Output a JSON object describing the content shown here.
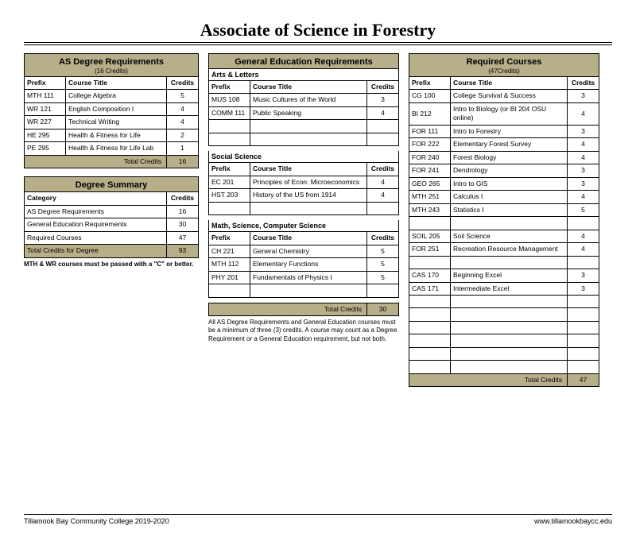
{
  "title": "Associate of Science in Forestry",
  "footer_left": "Tillamook Bay Community College 2019-2020",
  "footer_right": "www.tillamookbaycc.edu",
  "colors": {
    "accent": "#b7ae8a"
  },
  "asReq": {
    "heading": "AS Degree Requirements",
    "subheading": "(16 Credits)",
    "columns": [
      "Prefix",
      "Course Title",
      "Credits"
    ],
    "rows": [
      [
        "MTH 111",
        "College Algebra",
        "5"
      ],
      [
        "WR 121",
        "English Composition I",
        "4"
      ],
      [
        "WR 227",
        "Technical Writing",
        "4"
      ],
      [
        "HE 295",
        "Health & Fitness for Life",
        "2"
      ],
      [
        "PE 295",
        "Health & Fitness for Life Lab",
        "1"
      ]
    ],
    "total_label": "Total Credits",
    "total": "16"
  },
  "summary": {
    "heading": "Degree Summary",
    "columns": [
      "Category",
      "Credits"
    ],
    "rows": [
      [
        "AS Degree Requirements",
        "16"
      ],
      [
        "General Education Requirements",
        "30"
      ],
      [
        "Required Courses",
        "47"
      ]
    ],
    "total_label": "Total Credits for Degree",
    "total": "93",
    "footnote": "MTH & WR courses must be passed with a \"C\" or better."
  },
  "genEd": {
    "heading": "General Education Requirements",
    "groups": [
      {
        "title": "Arts & Letters",
        "columns": [
          "Prefix",
          "Course Title",
          "Credits"
        ],
        "rows": [
          [
            "MUS 108",
            "Music Cultures of the World",
            "3"
          ],
          [
            "COMM 111",
            "Public Speaking",
            "4"
          ],
          [
            "",
            "",
            ""
          ],
          [
            "",
            "",
            ""
          ]
        ]
      },
      {
        "title": "Social Science",
        "columns": [
          "Prefix",
          "Course Title",
          "Credits"
        ],
        "rows": [
          [
            "EC 201",
            "Principles of Econ: Microeconomics",
            "4"
          ],
          [
            "HST 203",
            "History of the US from 1914",
            "4"
          ],
          [
            "",
            "",
            ""
          ]
        ]
      },
      {
        "title": "Math, Science, Computer Science",
        "columns": [
          "Prefix",
          "Course Title",
          "Credits"
        ],
        "rows": [
          [
            "CH 221",
            "General Chemistry",
            "5"
          ],
          [
            "MTH 112",
            "Elementary Functions",
            "5"
          ],
          [
            "PHY 201",
            "Fundamentals of Physics I",
            "5"
          ],
          [
            "",
            "",
            ""
          ]
        ]
      }
    ],
    "total_label": "Total Credits",
    "total": "30",
    "footnote": "All AS Degree Requirements and General Education courses must be a minimum of three (3) credits. A course may count as a Degree Requirement or a General Education requirement, but not both."
  },
  "required": {
    "heading": "Required Courses",
    "subheading": "(47Credits)",
    "columns": [
      "Prefix",
      "Course Title",
      "Credits"
    ],
    "rows": [
      [
        "CG 100",
        "College Survival & Success",
        "3"
      ],
      [
        "BI 212",
        "Intro to Biology (or BI 204 OSU online)",
        "4"
      ],
      [
        "FOR 111",
        "Intro to Forestry",
        "3"
      ],
      [
        "FOR 222",
        "Elementary Forest Survey",
        "4"
      ],
      [
        "FOR 240",
        "Forest Biology",
        "4"
      ],
      [
        "FOR 241",
        "Dendrology",
        "3"
      ],
      [
        "GEO 265",
        "Intro to GIS",
        "3"
      ],
      [
        "MTH 251",
        "Calculus I",
        "4"
      ],
      [
        "MTH 243",
        "Statistics I",
        "5"
      ],
      [
        "",
        "",
        ""
      ],
      [
        "SOIL 205",
        "Soil Science",
        "4"
      ],
      [
        "FOR 251",
        "Recreation Resource Management",
        "4"
      ],
      [
        "",
        "",
        ""
      ],
      [
        "CAS 170",
        "Beginning Excel",
        "3"
      ],
      [
        "CAS 171",
        "Intermediate Excel",
        "3"
      ],
      [
        "",
        "",
        ""
      ],
      [
        "",
        "",
        ""
      ],
      [
        "",
        "",
        ""
      ],
      [
        "",
        "",
        ""
      ],
      [
        "",
        "",
        ""
      ],
      [
        "",
        "",
        ""
      ]
    ],
    "total_label": "Total Credits",
    "total": "47"
  }
}
